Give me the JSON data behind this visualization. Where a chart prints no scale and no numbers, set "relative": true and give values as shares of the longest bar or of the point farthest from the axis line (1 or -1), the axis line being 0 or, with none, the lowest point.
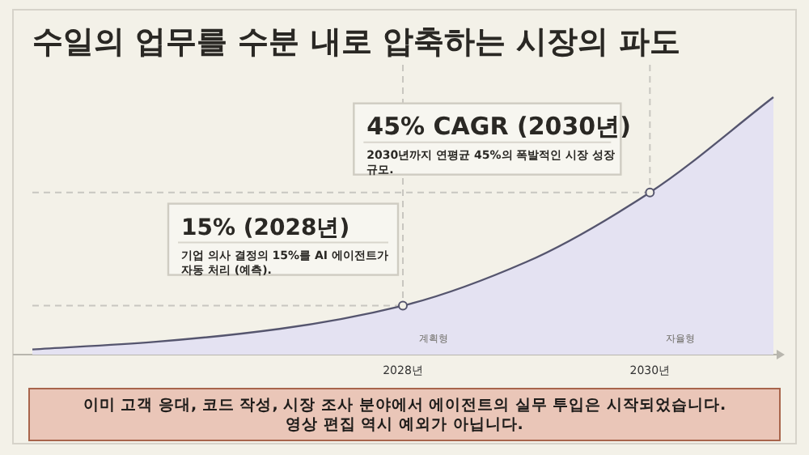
{
  "chart_data": {
    "type": "area",
    "title": "수일의 업무를 수분 내로 압축하는 시장의 파도",
    "relative": true,
    "xlim": [
      2025,
      2031
    ],
    "xticks": [
      {
        "value": 2028,
        "label": "2028년"
      },
      {
        "value": 2030,
        "label": "2030년"
      }
    ],
    "series": [
      {
        "color": "#55556e",
        "x": [
          2025,
          2026,
          2027,
          2028,
          2029,
          2030,
          2031
        ],
        "values": [
          0.02,
          0.05,
          0.1,
          0.19,
          0.36,
          0.63,
          1.0
        ]
      },
      {
        "type": "scatter",
        "color": "#55556e",
        "marker": "circle",
        "x": [
          2028,
          2030
        ],
        "values": [
          0.19,
          0.63
        ]
      }
    ],
    "ref_lines": [
      {
        "axis": "x",
        "value": 2028,
        "label": "계획형",
        "line_style": "dashed",
        "color": "#c8c6c0"
      },
      {
        "axis": "x",
        "value": 2030,
        "label": "자율형",
        "line_style": "dashed",
        "color": "#c8c6c0"
      },
      {
        "axis": "y",
        "value": 0.19,
        "line_style": "dashed",
        "color": "#c8c6c0"
      },
      {
        "axis": "y",
        "value": 0.63,
        "line_style": "dashed",
        "color": "#c8c6c0"
      }
    ],
    "annotations": [
      {
        "text": "15% (2028년)\n기업 의사 결정의 15%를 AI 에이전트가\n자동 처리 (예측).",
        "x": 2028,
        "y": 0.19
      },
      {
        "text": "45% CAGR (2030년)\n2030년까지 연평균 45%의 폭발적인 시장 성장\n규모.",
        "x": 2030,
        "y": 0.63
      },
      "이미 고객 응대, 코드 작성, 시장 조사 분야에서 에이전트의 실무 투입은 시작되었습니다.\n영상 편집 역시 예외가 아닙니다."
    ]
  }
}
